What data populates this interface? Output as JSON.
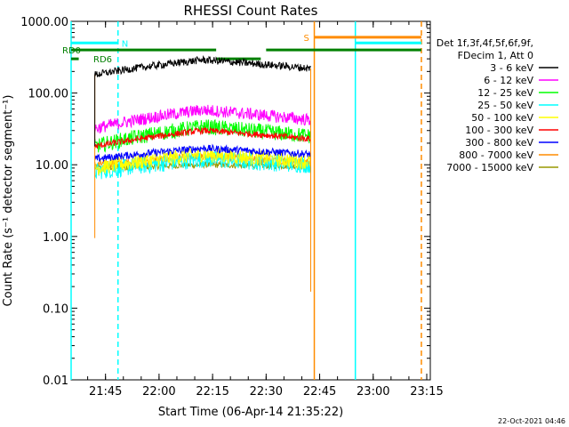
{
  "chart_data": {
    "type": "line",
    "title": "RHESSI Count Rates",
    "xlabel": "Start Time (06-Apr-14 21:35:22)",
    "ylabel": "Count Rate (s⁻¹ detector segment⁻¹)",
    "y_scale": "log",
    "ylim": [
      0.01,
      1000
    ],
    "yticks": [
      "0.01",
      "0.10",
      "1.00",
      "10.00",
      "100.00",
      "1000.00"
    ],
    "ytick_values": [
      0.01,
      0.1,
      1,
      10,
      100,
      1000
    ],
    "xlim": [
      "21:35:22",
      "23:16:00"
    ],
    "xticks": [
      "21:45",
      "22:00",
      "22:15",
      "22:30",
      "22:45",
      "23:00",
      "23:15"
    ],
    "grid": false,
    "background": "#ffffff",
    "legend": {
      "position": "right",
      "header": [
        "Det 1f,3f,4f,5f,6f,9f,",
        "FDecim 1, Att 0"
      ]
    },
    "data_window": {
      "start": "21:42:00",
      "end": "22:42:30"
    },
    "series": [
      {
        "name": "3 - 6 keV",
        "color": "#000000",
        "level_start": 180,
        "level_mid": 290,
        "level_end": 220,
        "noise": 0.12
      },
      {
        "name": "6 - 12 keV",
        "color": "#ff00ff",
        "level_start": 32,
        "level_mid": 58,
        "level_end": 42,
        "noise": 0.2
      },
      {
        "name": "12 - 25 keV",
        "color": "#00ff00",
        "level_start": 18,
        "level_mid": 34,
        "level_end": 25,
        "noise": 0.25
      },
      {
        "name": "25 - 50 keV",
        "color": "#00ffff",
        "level_start": 8,
        "level_mid": 12,
        "level_end": 10,
        "noise": 0.28
      },
      {
        "name": "50 - 100 keV",
        "color": "#ffff00",
        "level_start": 9,
        "level_mid": 14,
        "level_end": 11,
        "noise": 0.25
      },
      {
        "name": "100 - 300 keV",
        "color": "#ff0000",
        "level_start": 18,
        "level_mid": 30,
        "level_end": 23,
        "noise": 0.1
      },
      {
        "name": "300 - 800 keV",
        "color": "#0000ff",
        "level_start": 12,
        "level_mid": 17,
        "level_end": 14,
        "noise": 0.12
      },
      {
        "name": "800 - 7000 keV",
        "color": "#ff8c00",
        "level_start": 10,
        "level_mid": 13,
        "level_end": 11,
        "noise": 0.12
      },
      {
        "name": "7000 - 15000 keV",
        "color": "#999900",
        "level_start": 9,
        "level_mid": 10,
        "level_end": 9.5,
        "noise": 0.1
      }
    ],
    "flag_bars": [
      {
        "label": "RD0",
        "color": "#00ffff",
        "y": 500,
        "segments": [
          [
            "21:35:22",
            "21:48:30"
          ],
          [
            "22:55:00",
            "23:13:30"
          ]
        ]
      },
      {
        "label": "N",
        "color": "#00ffff",
        "y": 500,
        "segments": []
      },
      {
        "label": "RD0",
        "color": "#008000",
        "y": 400,
        "segments": [
          [
            "21:35:22",
            "22:16:00"
          ],
          [
            "22:30:00",
            "23:13:30"
          ]
        ]
      },
      {
        "label": "RD6",
        "color": "#008000",
        "y": 300,
        "segments": [
          [
            "21:35:22",
            "21:37:30"
          ],
          [
            "22:16:00",
            "22:28:30"
          ]
        ]
      },
      {
        "label": "S",
        "color": "#ff8c00",
        "y": 600,
        "segments": [
          [
            "22:43:30",
            "23:13:30"
          ]
        ]
      }
    ],
    "vertical_lines": [
      {
        "time": "21:35:22",
        "color": "#00ffff",
        "style": "solid"
      },
      {
        "time": "21:48:30",
        "color": "#00ffff",
        "style": "dashed"
      },
      {
        "time": "22:43:30",
        "color": "#ff8c00",
        "style": "solid"
      },
      {
        "time": "22:55:00",
        "color": "#00ffff",
        "style": "solid"
      },
      {
        "time": "23:13:30",
        "color": "#ff8c00",
        "style": "dashed"
      }
    ],
    "footer_text": "22-Oct-2021 04:46"
  }
}
